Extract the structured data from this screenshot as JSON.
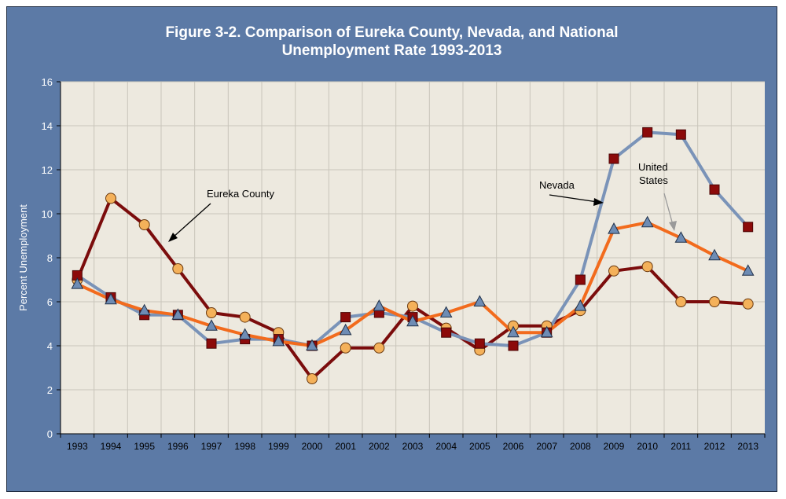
{
  "chart_data": {
    "type": "line",
    "title": "Figure 3-2. Comparison of Eureka County, Nevada, and National",
    "subtitle": "Unemployment Rate 1993-2013",
    "xlabel": "",
    "ylabel": "Percent Unemployment",
    "ylim": [
      0,
      16
    ],
    "yticks": [
      0,
      2,
      4,
      6,
      8,
      10,
      12,
      14,
      16
    ],
    "grid": true,
    "categories": [
      "1993",
      "1994",
      "1995",
      "1996",
      "1997",
      "1998",
      "1999",
      "2000",
      "2001",
      "2002",
      "2003",
      "2004",
      "2005",
      "2006",
      "2007",
      "2008",
      "2009",
      "2010",
      "2011",
      "2012",
      "2013"
    ],
    "series": [
      {
        "name": "Eureka County",
        "color": "#7b0c0c",
        "marker": "circle",
        "marker_fill": "#f4b15a",
        "values": [
          7.0,
          10.7,
          9.5,
          7.5,
          5.5,
          5.3,
          4.6,
          2.5,
          3.9,
          3.9,
          5.8,
          4.8,
          3.8,
          4.9,
          4.9,
          5.6,
          7.4,
          7.6,
          6.0,
          6.0,
          5.9
        ]
      },
      {
        "name": "Nevada",
        "color": "#7a93b8",
        "marker": "square",
        "marker_fill": "#8c0a0a",
        "values": [
          7.2,
          6.2,
          5.4,
          5.4,
          4.1,
          4.3,
          4.3,
          4.0,
          5.3,
          5.5,
          5.3,
          4.6,
          4.1,
          4.0,
          4.6,
          7.0,
          12.5,
          13.7,
          13.6,
          11.1,
          9.4
        ]
      },
      {
        "name": "United States",
        "color": "#f26b1d",
        "marker": "triangle",
        "marker_fill": "#6e8cb4",
        "values": [
          6.8,
          6.1,
          5.6,
          5.4,
          4.9,
          4.5,
          4.2,
          4.0,
          4.7,
          5.8,
          5.1,
          5.5,
          6.0,
          4.6,
          4.6,
          5.8,
          9.3,
          9.6,
          8.9,
          8.1,
          7.4
        ]
      }
    ],
    "annotations": [
      {
        "text": "Eureka County",
        "series": "Eureka County"
      },
      {
        "text": "Nevada",
        "series": "Nevada"
      },
      {
        "text": "United",
        "series": "United States"
      },
      {
        "text": "States",
        "series": "United States"
      }
    ],
    "colors": {
      "frame": "#5c7aa6",
      "plot_bg": "#ede9df",
      "grid": "#c9c5bb"
    }
  }
}
